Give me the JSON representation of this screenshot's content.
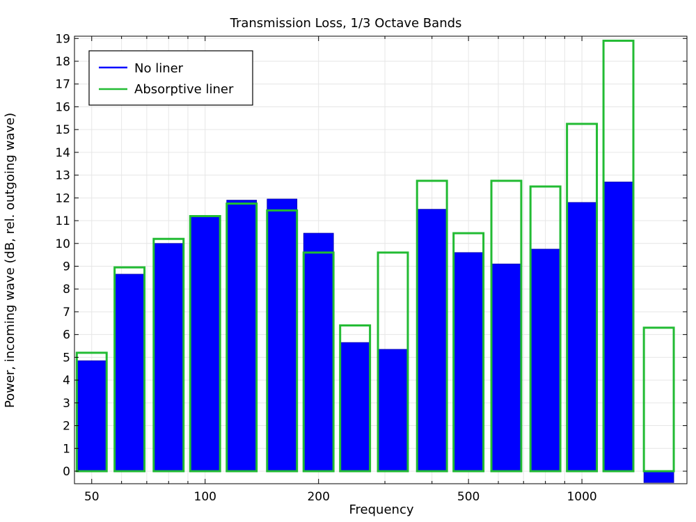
{
  "chart_data": {
    "type": "bar",
    "title": "Transmission Loss, 1/3 Octave Bands",
    "xlabel": "Frequency",
    "ylabel": "Power, incoming wave (dB, rel. outgoing wave)",
    "x_scale": "log",
    "xlim": [
      45,
      1900
    ],
    "ylim": [
      -0.55,
      19.1
    ],
    "x_ticks": [
      50,
      100,
      200,
      500,
      1000
    ],
    "y_ticks": [
      0,
      1,
      2,
      3,
      4,
      5,
      6,
      7,
      8,
      9,
      10,
      11,
      12,
      13,
      14,
      15,
      16,
      17,
      18,
      19
    ],
    "grid": true,
    "legend_position": "top-left",
    "categories": [
      50,
      63,
      80,
      100,
      125,
      160,
      200,
      250,
      315,
      400,
      500,
      630,
      800,
      1000,
      1250,
      1600
    ],
    "series": [
      {
        "name": "No liner",
        "style": "filled",
        "color": "#0000ff",
        "values": [
          4.85,
          8.65,
          10.0,
          11.2,
          11.9,
          11.95,
          10.45,
          5.65,
          5.35,
          11.5,
          9.6,
          9.1,
          9.75,
          11.8,
          12.7,
          -0.5
        ]
      },
      {
        "name": "Absorptive liner",
        "style": "outline",
        "color": "#22bb33",
        "values": [
          5.2,
          8.95,
          10.2,
          11.2,
          11.75,
          11.45,
          9.6,
          6.4,
          9.6,
          12.75,
          10.45,
          12.75,
          12.5,
          15.25,
          18.9,
          6.3
        ]
      }
    ]
  }
}
